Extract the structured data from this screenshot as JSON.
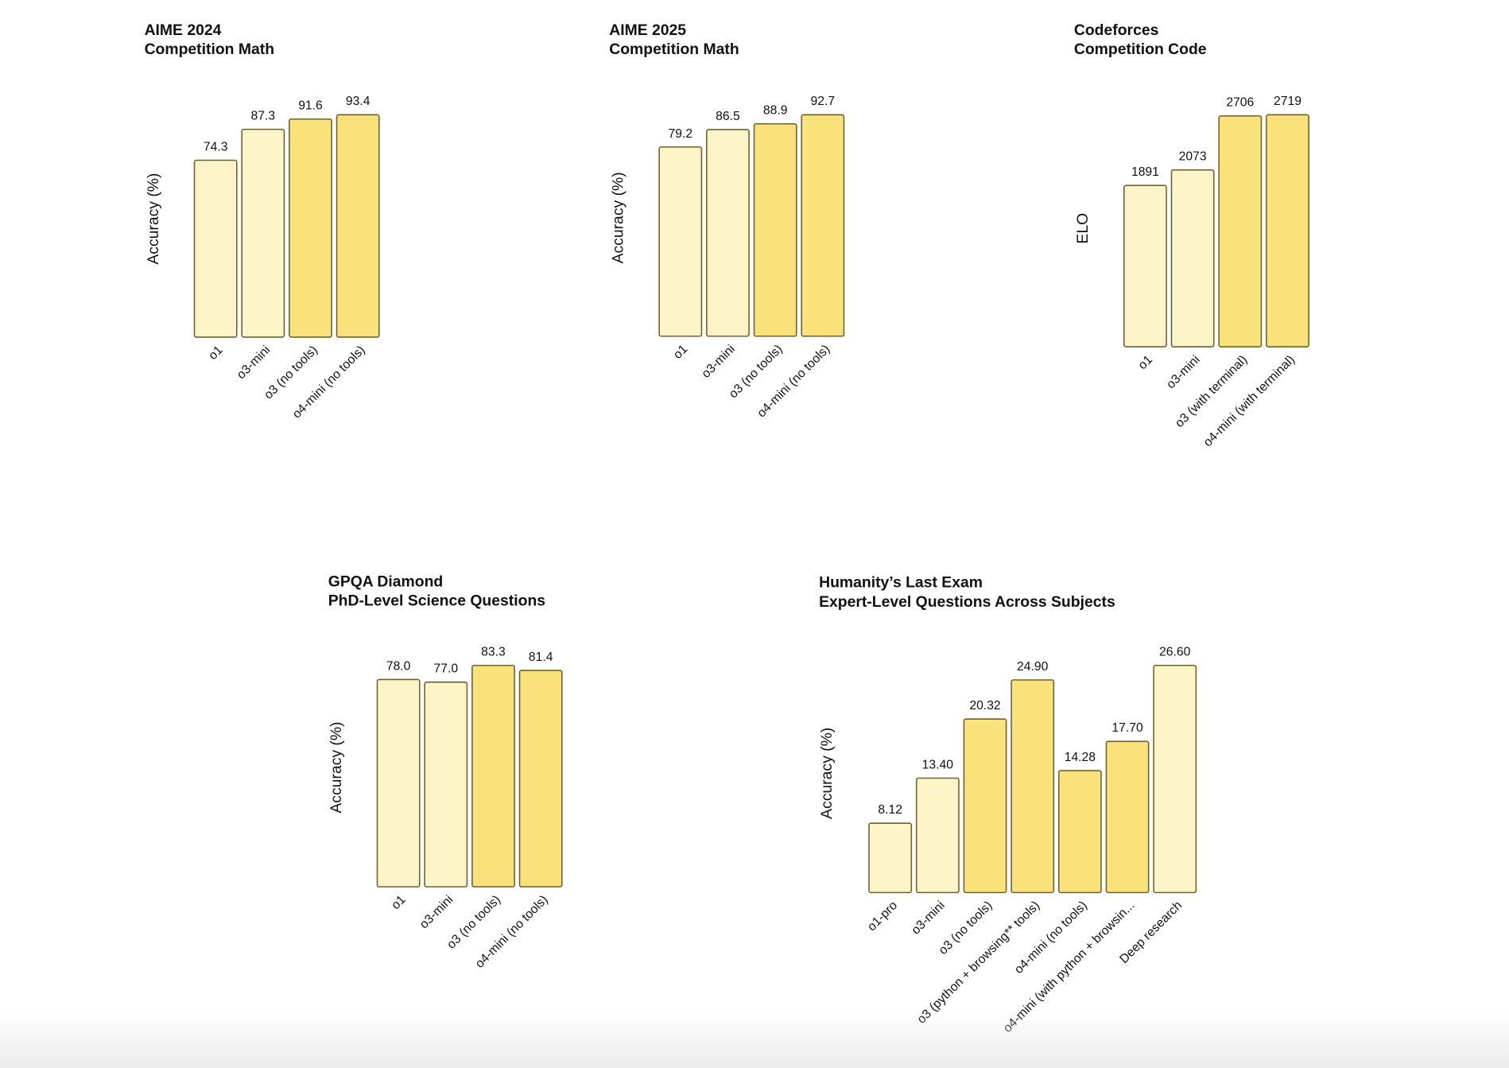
{
  "colors": {
    "light": "#fdf4c8",
    "dark": "#f9e27a",
    "stroke": "#6e6130"
  },
  "chart_data": [
    {
      "type": "bar",
      "title": "AIME 2024",
      "subtitle": "Competition Math",
      "ylabel": "Accuracy (%)",
      "categories": [
        "o1",
        "o3-mini",
        "o3 (no tools)",
        "o4-mini (no tools)"
      ],
      "values": [
        74.3,
        87.3,
        91.6,
        93.4
      ],
      "value_labels": [
        "74.3",
        "87.3",
        "91.6",
        "93.4"
      ],
      "shades": [
        "light",
        "light",
        "dark",
        "dark"
      ]
    },
    {
      "type": "bar",
      "title": "AIME 2025",
      "subtitle": "Competition Math",
      "ylabel": "Accuracy (%)",
      "categories": [
        "o1",
        "o3-mini",
        "o3 (no tools)",
        "o4-mini (no tools)"
      ],
      "values": [
        79.2,
        86.5,
        88.9,
        92.7
      ],
      "value_labels": [
        "79.2",
        "86.5",
        "88.9",
        "92.7"
      ],
      "shades": [
        "light",
        "light",
        "dark",
        "dark"
      ]
    },
    {
      "type": "bar",
      "title": "Codeforces",
      "subtitle": "Competition Code",
      "ylabel": "ELO",
      "categories": [
        "o1",
        "o3-mini",
        "o3 (with terminal)",
        "o4-mini (with terminal)"
      ],
      "values": [
        1891,
        2073,
        2706,
        2719
      ],
      "value_labels": [
        "1891",
        "2073",
        "2706",
        "2719"
      ],
      "shades": [
        "light",
        "light",
        "dark",
        "dark"
      ]
    },
    {
      "type": "bar",
      "title": "GPQA Diamond",
      "subtitle": "PhD-Level Science Questions",
      "ylabel": "Accuracy (%)",
      "categories": [
        "o1",
        "o3-mini",
        "o3 (no tools)",
        "o4-mini (no tools)"
      ],
      "values": [
        78.0,
        77.0,
        83.3,
        81.4
      ],
      "value_labels": [
        "78.0",
        "77.0",
        "83.3",
        "81.4"
      ],
      "shades": [
        "light",
        "light",
        "dark",
        "dark"
      ]
    },
    {
      "type": "bar",
      "title": "Humanity’s Last Exam",
      "subtitle": "Expert-Level Questions Across Subjects",
      "ylabel": "Accuracy (%)",
      "categories": [
        "o1-pro",
        "o3-mini",
        "o3 (no tools)",
        "o3 (python + browsing** tools)",
        "o4-mini (no tools)",
        "o4-mini (with python + browsin...",
        "Deep research"
      ],
      "values": [
        8.12,
        13.4,
        20.32,
        24.9,
        14.28,
        17.7,
        26.6
      ],
      "value_labels": [
        "8.12",
        "13.40",
        "20.32",
        "24.90",
        "14.28",
        "17.70",
        "26.60"
      ],
      "shades": [
        "light",
        "light",
        "dark",
        "dark",
        "dark",
        "dark",
        "light"
      ]
    }
  ]
}
